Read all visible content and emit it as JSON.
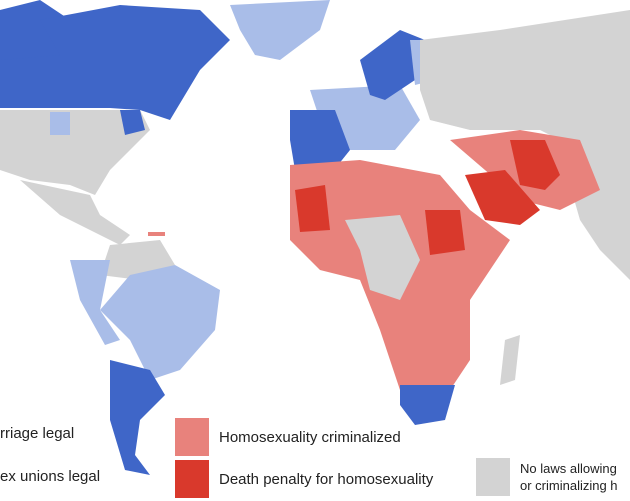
{
  "colors": {
    "same_sex_marriage_legal": "#3f66c8",
    "same_sex_unions_legal": "#a9bde8",
    "homosexuality_criminalized": "#e8827c",
    "death_penalty": "#d9392c",
    "no_laws": "#d3d3d3",
    "ocean": "#ffffff"
  },
  "legend": [
    {
      "label": "rriage legal"
    },
    {
      "label": "ex unions legal"
    },
    {
      "label": "Homosexuality criminalized"
    },
    {
      "label": "Death penalty for homosexuality"
    },
    {
      "line1": "No laws allowing",
      "line2": "or criminalizing h"
    }
  ]
}
